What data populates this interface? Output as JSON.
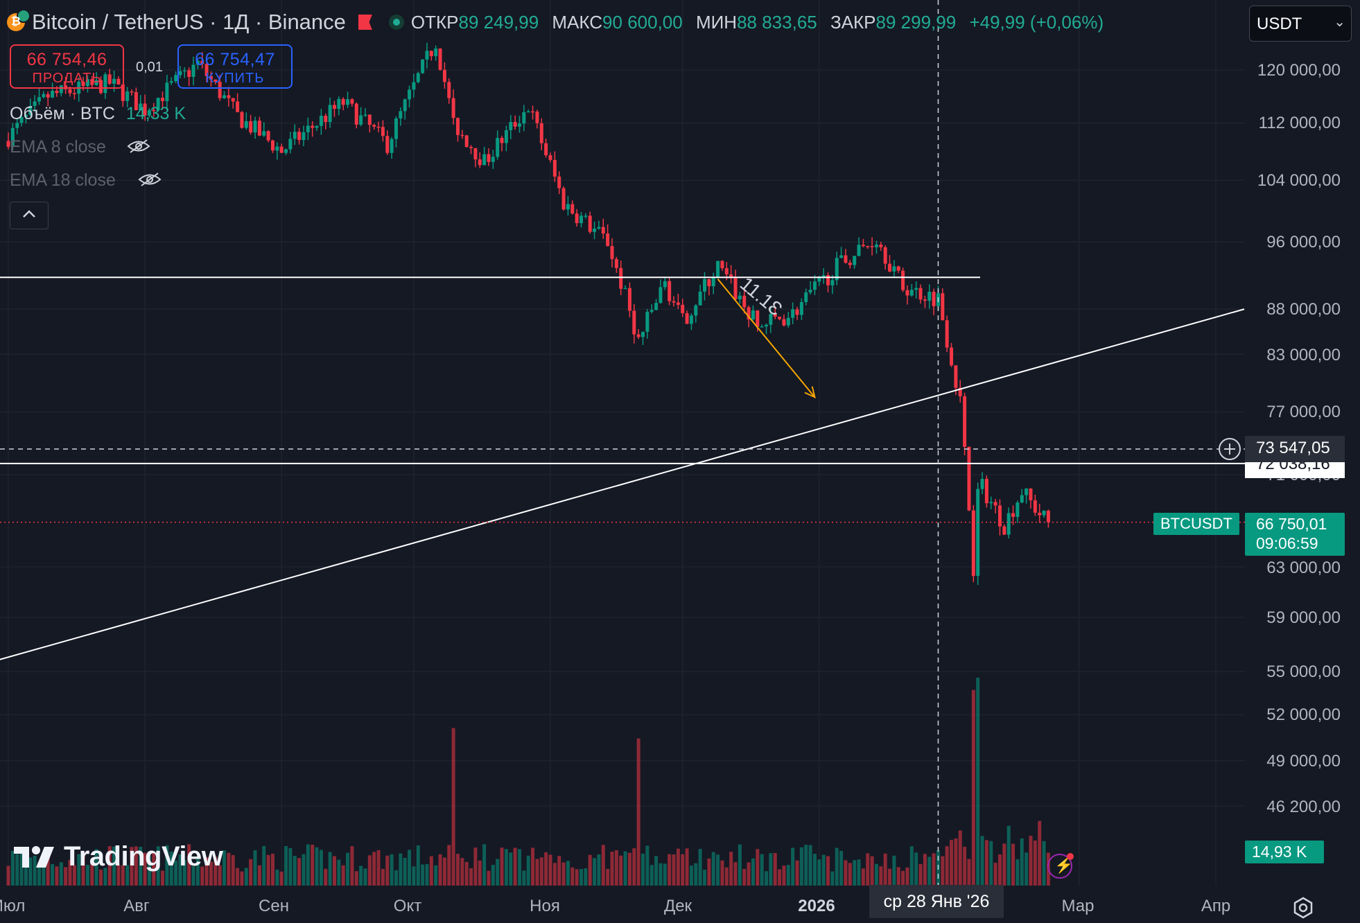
{
  "header": {
    "title": "Bitcoin / TetherUS · 1Д · Binance",
    "ohlc": [
      {
        "key": "ОТКР",
        "value": "89 249,99"
      },
      {
        "key": "МАКС",
        "value": "90 600,00"
      },
      {
        "key": "МИН",
        "value": "88 833,65"
      },
      {
        "key": "ЗАКР",
        "value": "89 299,99"
      }
    ],
    "change": "+49,99 (+0,06%)"
  },
  "trade": {
    "sell_price": "66 754,46",
    "sell_label": "ПРОДАТЬ",
    "spread": "0,01",
    "buy_price": "66 754,47",
    "buy_label": "КУПИТЬ"
  },
  "legend": {
    "volume_label": "Объём · BTC",
    "volume_value": "14,33 K",
    "ema8": "EMA 8 close",
    "ema18": "EMA 18 close"
  },
  "currency_select": "USDT",
  "colors": {
    "up": "#089981",
    "down": "#f23645",
    "bg": "#151924",
    "annotation": "#f7a600"
  },
  "chart_data": {
    "type": "candlestick",
    "symbol": "BTCUSDT",
    "interval": "1D",
    "price_ticks": [
      "120 000,00",
      "112 000,00",
      "104 000,00",
      "96 000,00",
      "88 000,00",
      "83 000,00",
      "77 000,00",
      "71 000,00",
      "63 000,00",
      "59 000,00",
      "55 000,00",
      "52 000,00",
      "49 000,00",
      "46 200,00"
    ],
    "x_ticks": [
      {
        "label": "Июл",
        "date": "2025-07-01"
      },
      {
        "label": "Авг",
        "date": "2025-08-01"
      },
      {
        "label": "Сен",
        "date": "2025-09-01"
      },
      {
        "label": "Окт",
        "date": "2025-10-01"
      },
      {
        "label": "Ноя",
        "date": "2025-11-01"
      },
      {
        "label": "Дек",
        "date": "2025-12-01"
      },
      {
        "label": "2026",
        "date": "2026-01-01"
      },
      {
        "label": "Мар",
        "date": "2026-03-01"
      },
      {
        "label": "Апр",
        "date": "2026-04-01"
      }
    ],
    "date_range": [
      "2025-07-01",
      "2026-02-22"
    ],
    "anchors": [
      {
        "date": "2025-07-01",
        "close": 110000
      },
      {
        "date": "2025-07-10",
        "close": 116000
      },
      {
        "date": "2025-07-24",
        "close": 118000
      },
      {
        "date": "2025-08-01",
        "close": 114000
      },
      {
        "date": "2025-08-13",
        "close": 121000
      },
      {
        "date": "2025-08-22",
        "close": 113000
      },
      {
        "date": "2025-09-01",
        "close": 108000
      },
      {
        "date": "2025-09-15",
        "close": 115000
      },
      {
        "date": "2025-09-25",
        "close": 109000
      },
      {
        "date": "2025-10-06",
        "close": 124500
      },
      {
        "date": "2025-10-10",
        "close": 112000
      },
      {
        "date": "2025-10-17",
        "close": 106500
      },
      {
        "date": "2025-10-27",
        "close": 114500
      },
      {
        "date": "2025-11-04",
        "close": 101000
      },
      {
        "date": "2025-11-14",
        "close": 96000
      },
      {
        "date": "2025-11-21",
        "close": 84500
      },
      {
        "date": "2025-11-27",
        "close": 91000
      },
      {
        "date": "2025-12-01",
        "close": 86500
      },
      {
        "date": "2025-12-09",
        "close": 93000
      },
      {
        "date": "2025-12-18",
        "close": 86000
      },
      {
        "date": "2025-12-26",
        "close": 87500
      },
      {
        "date": "2026-01-05",
        "close": 93000
      },
      {
        "date": "2026-01-14",
        "close": 96500
      },
      {
        "date": "2026-01-20",
        "close": 90500
      },
      {
        "date": "2026-01-28",
        "close": 89300
      },
      {
        "date": "2026-02-02",
        "close": 78000
      },
      {
        "date": "2026-02-05",
        "close": 63000
      },
      {
        "date": "2026-02-06",
        "close": 70500
      },
      {
        "date": "2026-02-12",
        "close": 66500
      },
      {
        "date": "2026-02-16",
        "close": 69500
      },
      {
        "date": "2026-02-20",
        "close": 67500
      },
      {
        "date": "2026-02-22",
        "close": 66750
      }
    ],
    "drawings": {
      "hlines": [
        91700,
        72038.16
      ],
      "trendline": [
        {
          "date": "2025-06-25",
          "price": 55500
        },
        {
          "date": "2026-04-01",
          "price": 88000
        }
      ],
      "arrow": {
        "from": {
          "date": "2025-12-09",
          "price": 91500
        },
        "to": {
          "date": "2025-12-31",
          "price": 78500
        },
        "label": "11.1Ɛ"
      }
    },
    "crosshair": {
      "date_label": "ср 28 Янв '26",
      "price": "73 547,05"
    },
    "hline_price_label": "72 038,16",
    "last_price": "66 750,01",
    "countdown": "09:06:59",
    "volume_last": "14,93 K",
    "volume_spike_dates": [
      "2025-10-10",
      "2025-11-21",
      "2026-02-05",
      "2026-02-06"
    ]
  },
  "logo_text": "TradingView"
}
